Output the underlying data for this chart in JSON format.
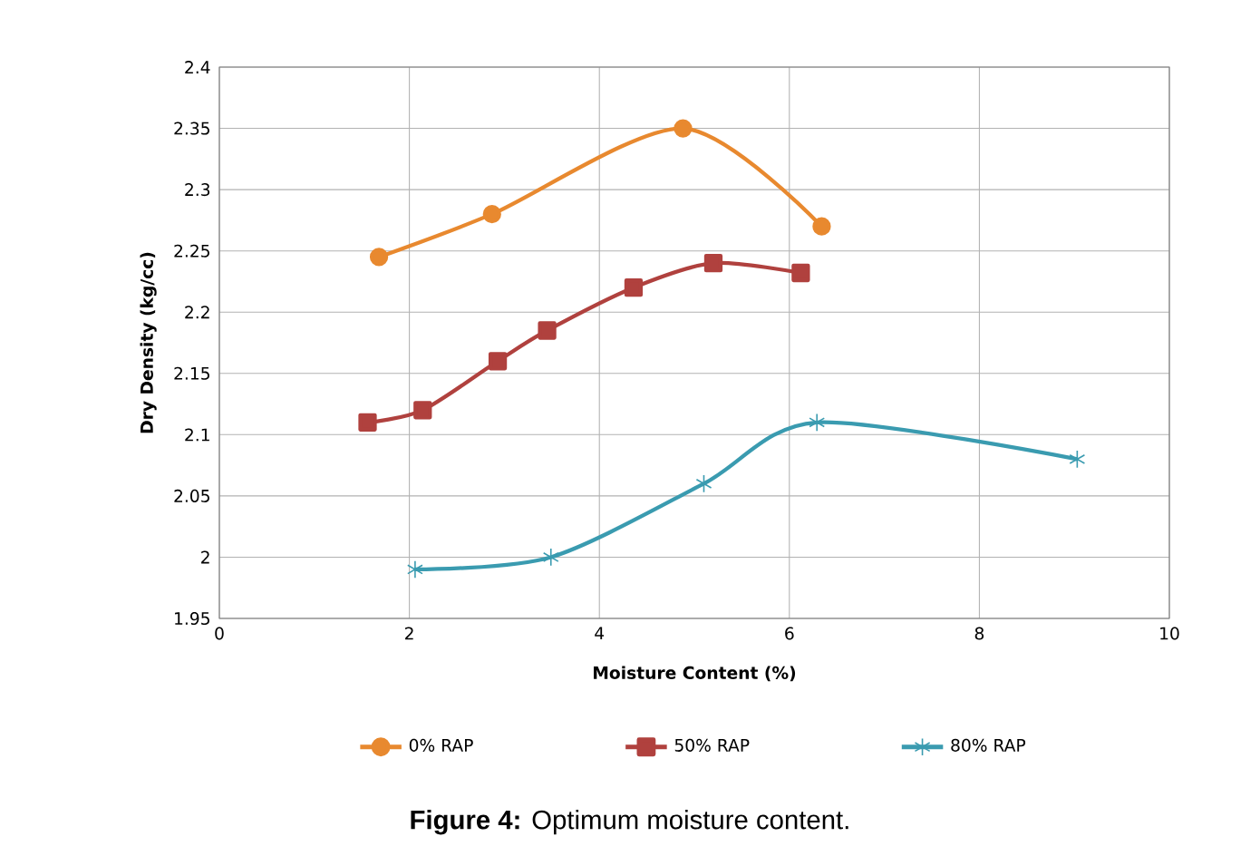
{
  "chart_data": {
    "type": "line",
    "xlabel": "Moisture Content (%)",
    "ylabel": "Dry Density (kg/cc)",
    "xlim": [
      0,
      10
    ],
    "xticks": [
      0,
      2,
      4,
      6,
      8,
      10
    ],
    "ylim": [
      1.95,
      2.4
    ],
    "yticks": [
      1.95,
      2,
      2.05,
      2.1,
      2.15,
      2.2,
      2.25,
      2.3,
      2.35,
      2.4
    ],
    "grid": true,
    "legend": "bottom",
    "line_style": "solid",
    "series": [
      {
        "name": "0% RAP",
        "color": "#e8892f",
        "marker": "circle",
        "x": [
          1.68,
          2.87,
          4.88,
          6.34
        ],
        "values": [
          2.245,
          2.28,
          2.35,
          2.27
        ]
      },
      {
        "name": "50% RAP",
        "color": "#b0413e",
        "marker": "square",
        "x": [
          1.56,
          2.14,
          2.93,
          3.45,
          4.36,
          5.2,
          6.12
        ],
        "values": [
          2.11,
          2.12,
          2.16,
          2.185,
          2.22,
          2.24,
          2.232
        ]
      },
      {
        "name": "80% RAP",
        "color": "#3a9bb0",
        "marker": "cross",
        "x": [
          2.06,
          3.49,
          5.1,
          6.29,
          9.03
        ],
        "values": [
          1.99,
          2.0,
          2.06,
          2.11,
          2.08
        ]
      }
    ],
    "annotations": [
      "**Figure 4:** Optimum moisture content."
    ]
  }
}
